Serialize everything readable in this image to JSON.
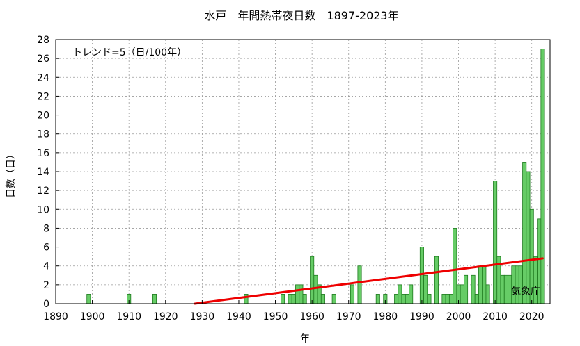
{
  "chart_data": {
    "type": "bar",
    "title": "水戸　年間熱帯夜日数　1897-2023年",
    "xlabel": "年",
    "ylabel": "日数（日）",
    "annotation": "トレンド=5（日/100年）",
    "credit": "気象庁",
    "xlim": [
      1890,
      2025
    ],
    "ylim": [
      0,
      28
    ],
    "x_ticks": [
      1890,
      1900,
      1910,
      1920,
      1930,
      1940,
      1950,
      1960,
      1970,
      1980,
      1990,
      2000,
      2010,
      2020
    ],
    "y_ticks": [
      0,
      2,
      4,
      6,
      8,
      10,
      12,
      14,
      16,
      18,
      20,
      22,
      24,
      26,
      28
    ],
    "grid": true,
    "bar_color": "#66cc66",
    "bar_edge_color": "#1f7a1f",
    "trend_color": "#ee0000",
    "series": [
      {
        "x": [
          1899,
          1910,
          1917,
          1942,
          1952,
          1954,
          1955,
          1956,
          1957,
          1958,
          1960,
          1961,
          1962,
          1963,
          1966,
          1971,
          1973,
          1978,
          1980,
          1983,
          1984,
          1985,
          1986,
          1987,
          1990,
          1991,
          1992,
          1994,
          1996,
          1997,
          1998,
          1999,
          2000,
          2001,
          2002,
          2004,
          2005,
          2006,
          2007,
          2008,
          2010,
          2011,
          2012,
          2013,
          2014,
          2015,
          2016,
          2017,
          2018,
          2019,
          2020,
          2021,
          2022,
          2023
        ],
        "values": [
          1,
          1,
          1,
          1,
          1,
          1,
          1,
          2,
          2,
          1,
          5,
          3,
          2,
          1,
          1,
          2,
          4,
          1,
          1,
          1,
          2,
          1,
          1,
          2,
          6,
          3,
          1,
          5,
          1,
          1,
          1,
          8,
          2,
          2,
          3,
          3,
          1,
          4,
          4,
          2,
          13,
          5,
          3,
          3,
          3,
          4,
          4,
          4,
          15,
          14,
          10,
          5,
          9,
          27
        ]
      }
    ],
    "trend": {
      "x": [
        1928,
        2023
      ],
      "y": [
        0,
        4.8
      ]
    }
  }
}
